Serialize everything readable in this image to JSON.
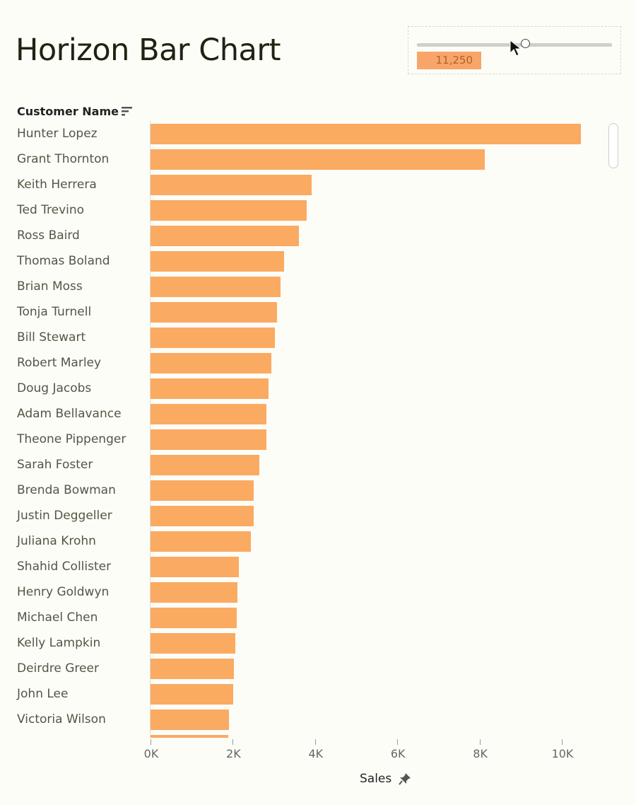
{
  "title": "Horizon Bar Chart",
  "parameter": {
    "value_label": "11,250",
    "value": 11250,
    "slider_fraction": 0.556
  },
  "colors": {
    "bar": "#fbaa62",
    "value_box": "#f9a56a"
  },
  "chart_data": {
    "type": "bar",
    "orientation": "horizontal",
    "row_header": "Customer Name",
    "xlabel": "Sales",
    "xlim": [
      0,
      11500
    ],
    "xticks": [
      "0K",
      "2K",
      "4K",
      "6K",
      "8K",
      "10K"
    ],
    "xtick_values": [
      0,
      2000,
      4000,
      6000,
      8000,
      10000
    ],
    "categories": [
      "Hunter Lopez",
      "Grant Thornton",
      "Keith Herrera",
      "Ted Trevino",
      "Ross Baird",
      "Thomas Boland",
      "Brian Moss",
      "Tonja Turnell",
      "Bill Stewart",
      "Robert Marley",
      "Doug Jacobs",
      "Adam Bellavance",
      "Theone Pippenger",
      "Sarah Foster",
      "Brenda Bowman",
      "Justin Deggeller",
      "Juliana Krohn",
      "Shahid Collister",
      "Henry Goldwyn",
      "Michael Chen",
      "Kelly Lampkin",
      "Deirdre Greer",
      "John Lee",
      "Victoria Wilson",
      ""
    ],
    "values": [
      10460,
      8130,
      3920,
      3800,
      3610,
      3250,
      3160,
      3080,
      3020,
      2940,
      2870,
      2820,
      2820,
      2650,
      2510,
      2510,
      2440,
      2150,
      2110,
      2100,
      2060,
      2030,
      2010,
      1910,
      1890
    ]
  }
}
